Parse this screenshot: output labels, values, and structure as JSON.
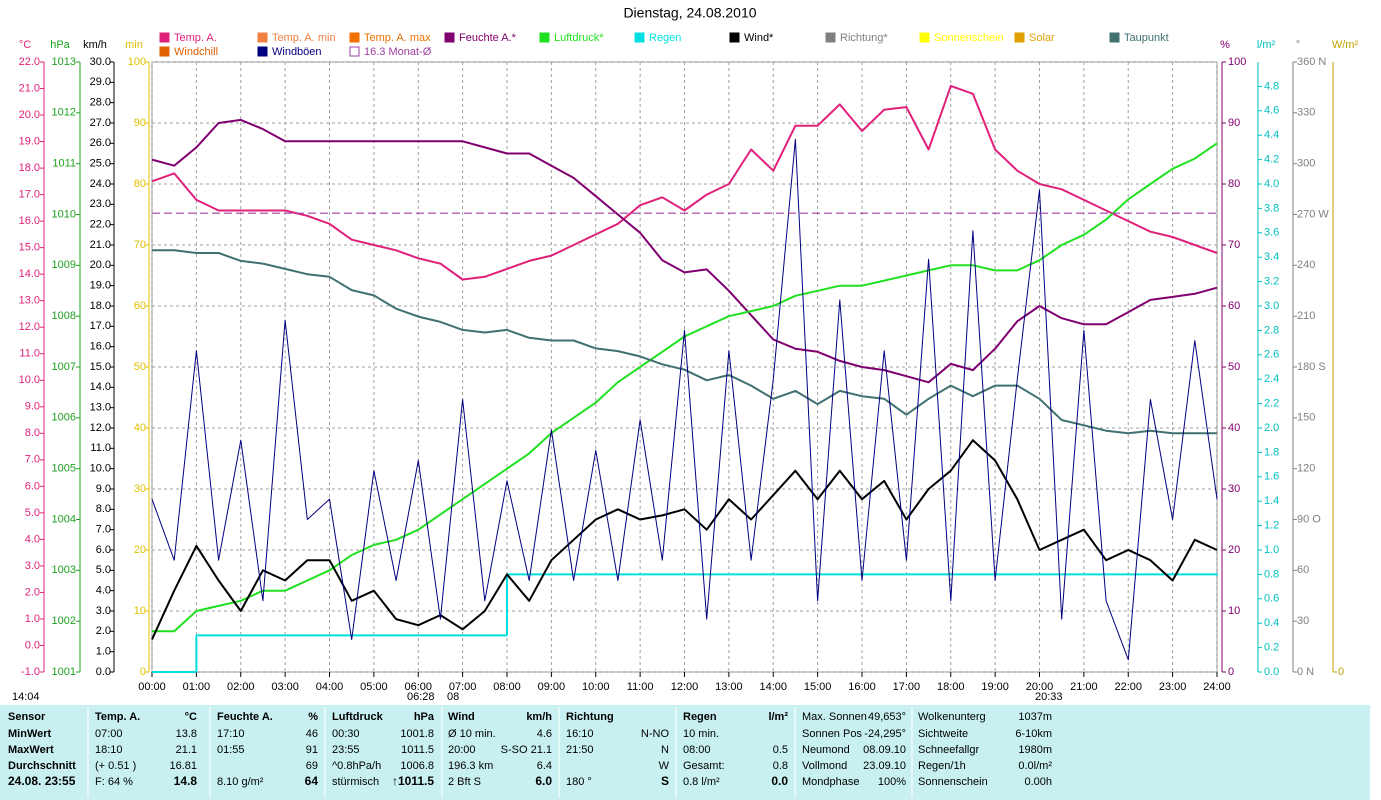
{
  "chart_data": {
    "type": "line",
    "title": "Dienstag, 24.08.2010",
    "x": [
      0,
      0.5,
      1,
      1.5,
      2,
      2.5,
      3,
      3.5,
      4,
      4.5,
      5,
      5.5,
      6,
      6.5,
      7,
      7.5,
      8,
      8.5,
      9,
      9.5,
      10,
      10.5,
      11,
      11.5,
      12,
      12.5,
      13,
      13.5,
      14,
      14.5,
      15,
      15.5,
      16,
      16.5,
      17,
      17.5,
      18,
      18.5,
      19,
      19.5,
      20,
      20.5,
      21,
      21.5,
      22,
      22.5,
      23,
      23.5,
      24
    ],
    "xlim": [
      0,
      24
    ],
    "xticks": [
      {
        "value": 0,
        "label": "00:00"
      },
      {
        "value": 1,
        "label": "01:00"
      },
      {
        "value": 2,
        "label": "02:00"
      },
      {
        "value": 3,
        "label": "03:00"
      },
      {
        "value": 4,
        "label": "04:00"
      },
      {
        "value": 5,
        "label": "05:00"
      },
      {
        "value": 6,
        "label": "06:00"
      },
      {
        "value": 7,
        "label": "07:00"
      },
      {
        "value": 8,
        "label": "08:00"
      },
      {
        "value": 9,
        "label": "09:00"
      },
      {
        "value": 10,
        "label": "10:00"
      },
      {
        "value": 11,
        "label": "11:00"
      },
      {
        "value": 12,
        "label": "12:00"
      },
      {
        "value": 13,
        "label": "13:00"
      },
      {
        "value": 14,
        "label": "14:00"
      },
      {
        "value": 15,
        "label": "15:00"
      },
      {
        "value": 16,
        "label": "16:00"
      },
      {
        "value": 17,
        "label": "17:00"
      },
      {
        "value": 18,
        "label": "18:00"
      },
      {
        "value": 19,
        "label": "19:00"
      },
      {
        "value": 20,
        "label": "20:00"
      },
      {
        "value": 21,
        "label": "21:00"
      },
      {
        "value": 22,
        "label": "22:00"
      },
      {
        "value": 23,
        "label": "23:00"
      },
      {
        "value": 24,
        "label": "24:00"
      }
    ],
    "xgrid": true,
    "axes": [
      {
        "label": "°C",
        "color": "#e0207a",
        "lim": [
          -1,
          22
        ],
        "ticks": [
          {
            "value": -1,
            "label": "-1.0"
          },
          {
            "value": 0,
            "label": "0.0"
          },
          {
            "value": 1,
            "label": "1.0"
          },
          {
            "value": 2,
            "label": "2.0"
          },
          {
            "value": 3,
            "label": "3.0"
          },
          {
            "value": 4,
            "label": "4.0"
          },
          {
            "value": 5,
            "label": "5.0"
          },
          {
            "value": 6,
            "label": "6.0"
          },
          {
            "value": 7,
            "label": "7.0"
          },
          {
            "value": 8,
            "label": "8.0"
          },
          {
            "value": 9,
            "label": "9.0"
          },
          {
            "value": 10,
            "label": "10.0"
          },
          {
            "value": 11,
            "label": "11.0"
          },
          {
            "value": 12,
            "label": "12.0"
          },
          {
            "value": 13,
            "label": "13.0"
          },
          {
            "value": 14,
            "label": "14.0"
          },
          {
            "value": 15,
            "label": "15.0"
          },
          {
            "value": 16,
            "label": "16.0"
          },
          {
            "value": 17,
            "label": "17.0"
          },
          {
            "value": 18,
            "label": "18.0"
          },
          {
            "value": 19,
            "label": "19.0"
          },
          {
            "value": 20,
            "label": "20.0"
          },
          {
            "value": 21,
            "label": "21.0"
          },
          {
            "value": 22,
            "label": "22.0"
          }
        ]
      },
      {
        "label": "hPa",
        "color": "#20a020",
        "lim": [
          1001,
          1013
        ],
        "ticks": [
          1001,
          1002,
          1003,
          1004,
          1005,
          1006,
          1007,
          1008,
          1009,
          1010,
          1011,
          1012,
          1013
        ]
      },
      {
        "label": "km/h",
        "color": "#000000",
        "lim": [
          0,
          30
        ],
        "ticks": [
          {
            "value": 0,
            "label": "0.0"
          },
          {
            "value": 1,
            "label": "1.0"
          },
          {
            "value": 2,
            "label": "2.0"
          },
          {
            "value": 3,
            "label": "3.0"
          },
          {
            "value": 4,
            "label": "4.0"
          },
          {
            "value": 5,
            "label": "5.0"
          },
          {
            "value": 6,
            "label": "6.0"
          },
          {
            "value": 7,
            "label": "7.0"
          },
          {
            "value": 8,
            "label": "8.0"
          },
          {
            "value": 9,
            "label": "9.0"
          },
          {
            "value": 10,
            "label": "10.0"
          },
          {
            "value": 11,
            "label": "11.0"
          },
          {
            "value": 12,
            "label": "12.0"
          },
          {
            "value": 13,
            "label": "13.0"
          },
          {
            "value": 14,
            "label": "14.0"
          },
          {
            "value": 15,
            "label": "15.0"
          },
          {
            "value": 16,
            "label": "16.0"
          },
          {
            "value": 17,
            "label": "17.0"
          },
          {
            "value": 18,
            "label": "18.0"
          },
          {
            "value": 19,
            "label": "19.0"
          },
          {
            "value": 20,
            "label": "20.0"
          },
          {
            "value": 21,
            "label": "21.0"
          },
          {
            "value": 22,
            "label": "22.0"
          },
          {
            "value": 23,
            "label": "23.0"
          },
          {
            "value": 24,
            "label": "24.0"
          },
          {
            "value": 25,
            "label": "25.0"
          },
          {
            "value": 26,
            "label": "26.0"
          },
          {
            "value": 27,
            "label": "27.0"
          },
          {
            "value": 28,
            "label": "28.0"
          },
          {
            "value": 29,
            "label": "29.0"
          },
          {
            "value": 30,
            "label": "30.0"
          }
        ]
      },
      {
        "label": "min",
        "color": "#e0c000",
        "lim": [
          0,
          100
        ],
        "ticks": [
          0,
          10,
          20,
          30,
          40,
          50,
          60,
          70,
          80,
          90,
          100
        ]
      },
      {
        "label": "%",
        "color": "#800070",
        "lim": [
          0,
          100
        ],
        "ticks": [
          0,
          10,
          20,
          30,
          40,
          50,
          60,
          70,
          80,
          90,
          100
        ],
        "grid": true
      },
      {
        "label": "l/m²",
        "color": "#00c0c0",
        "lim": [
          0,
          5
        ],
        "ticks": [
          {
            "value": 0,
            "label": "0.0"
          },
          0.2,
          0.4,
          0.6,
          0.8,
          {
            "value": 1,
            "label": "1.0"
          },
          1.2,
          1.4,
          1.6,
          1.8,
          {
            "value": 2,
            "label": "2.0"
          },
          2.2,
          2.4,
          2.6,
          2.8,
          {
            "value": 3,
            "label": "3.0"
          },
          3.2,
          3.4,
          3.6,
          3.8,
          {
            "value": 4,
            "label": "4.0"
          },
          4.2,
          4.4,
          4.6,
          4.8
        ]
      },
      {
        "label": "°",
        "color": "#808080",
        "lim": [
          0,
          360
        ],
        "ticks": [
          {
            "value": 0,
            "label": "0 N"
          },
          30,
          60,
          {
            "value": 90,
            "label": "90 O"
          },
          120,
          150,
          {
            "value": 180,
            "label": "180 S"
          },
          210,
          240,
          {
            "value": 270,
            "label": "270 W"
          },
          300,
          330,
          {
            "value": 360,
            "label": "360 N"
          }
        ]
      },
      {
        "label": "W/m²",
        "color": "#c0a000",
        "lim": [
          0,
          1000
        ],
        "ticks": [
          0
        ]
      }
    ],
    "series": [
      {
        "name": "Temp. A.",
        "color": "#e0207a",
        "axis": 0,
        "values": [
          17.5,
          17.8,
          16.8,
          16.4,
          16.4,
          16.4,
          16.4,
          16.2,
          15.9,
          15.3,
          15.1,
          14.9,
          14.6,
          14.4,
          13.8,
          13.9,
          14.2,
          14.5,
          14.7,
          15.1,
          15.5,
          15.9,
          16.6,
          16.9,
          16.4,
          17.0,
          17.4,
          18.7,
          17.9,
          19.6,
          19.6,
          20.4,
          19.4,
          20.2,
          20.3,
          18.7,
          21.1,
          20.8,
          18.7,
          17.9,
          17.4,
          17.2,
          16.8,
          16.4,
          16.0,
          15.6,
          15.4,
          15.1,
          14.8
        ]
      },
      {
        "name": "Temp. A. min",
        "color": "#f08040"
      },
      {
        "name": "Temp. A. max",
        "color": "#f07000"
      },
      {
        "name": "Feuchte A.*",
        "color": "#800070",
        "axis": 4,
        "values": [
          84,
          83,
          86,
          90,
          90.5,
          89,
          87,
          87,
          87,
          87,
          87,
          87,
          87,
          87,
          87,
          86,
          85,
          85,
          83,
          81,
          78,
          75,
          72,
          67.5,
          65.5,
          66,
          62.5,
          58.5,
          54.5,
          53,
          52.5,
          51,
          50,
          49.5,
          48.5,
          47.5,
          50.5,
          49.5,
          53,
          57.5,
          60,
          58,
          57,
          57,
          59,
          61,
          61.5,
          62,
          63
        ]
      },
      {
        "name": "Luftdruck*",
        "color": "#20e020",
        "axis": 1,
        "values": [
          1001.8,
          1001.8,
          1002.2,
          1002.3,
          1002.4,
          1002.6,
          1002.6,
          1002.8,
          1003.0,
          1003.3,
          1003.5,
          1003.6,
          1003.8,
          1004.1,
          1004.4,
          1004.7,
          1005.0,
          1005.3,
          1005.7,
          1006.0,
          1006.3,
          1006.7,
          1007.0,
          1007.3,
          1007.6,
          1007.8,
          1008.0,
          1008.1,
          1008.2,
          1008.4,
          1008.5,
          1008.6,
          1008.6,
          1008.7,
          1008.8,
          1008.9,
          1009.0,
          1009.0,
          1008.9,
          1008.9,
          1009.1,
          1009.4,
          1009.6,
          1009.9,
          1010.3,
          1010.6,
          1010.9,
          1011.1,
          1011.4
        ]
      },
      {
        "name": "Regen",
        "color": "#00e0e0",
        "axis": 5,
        "step": true,
        "values": [
          0,
          0,
          0.3,
          0.3,
          0.3,
          0.3,
          0.3,
          0.3,
          0.3,
          0.3,
          0.3,
          0.3,
          0.3,
          0.3,
          0.3,
          0.3,
          0.8,
          0.8,
          0.8,
          0.8,
          0.8,
          0.8,
          0.8,
          0.8,
          0.8,
          0.8,
          0.8,
          0.8,
          0.8,
          0.8,
          0.8,
          0.8,
          0.8,
          0.8,
          0.8,
          0.8,
          0.8,
          0.8,
          0.8,
          0.8,
          0.8,
          0.8,
          0.8,
          0.8,
          0.8,
          0.8,
          0.8,
          0.8,
          0.8
        ]
      },
      {
        "name": "Wind*",
        "color": "#000000",
        "axis": 2,
        "values": [
          1.6,
          4.0,
          6.2,
          4.5,
          3.0,
          5.0,
          4.5,
          5.5,
          5.5,
          3.5,
          4.0,
          2.6,
          2.3,
          2.8,
          2.1,
          3.0,
          4.8,
          3.5,
          5.5,
          6.5,
          7.5,
          8.0,
          7.5,
          7.7,
          8.0,
          7.0,
          8.5,
          7.5,
          8.7,
          9.9,
          8.5,
          9.9,
          8.5,
          9.4,
          7.5,
          9.0,
          9.9,
          11.4,
          10.4,
          8.5,
          6.0,
          6.5,
          7.0,
          5.5,
          6.0,
          5.5,
          4.5,
          6.5,
          6.0
        ]
      },
      {
        "name": "Richtung*",
        "color": "#808080"
      },
      {
        "name": "Sonnenschein",
        "color": "#ffff00"
      },
      {
        "name": "Solar",
        "color": "#e0a000"
      },
      {
        "name": "Taupunkt",
        "color": "#407070",
        "axis": 0,
        "values": [
          14.9,
          14.9,
          14.8,
          14.8,
          14.5,
          14.4,
          14.2,
          14.0,
          13.9,
          13.4,
          13.2,
          12.7,
          12.4,
          12.2,
          11.9,
          11.8,
          11.9,
          11.6,
          11.5,
          11.5,
          11.2,
          11.1,
          10.9,
          10.6,
          10.4,
          10.0,
          10.2,
          9.8,
          9.3,
          9.6,
          9.1,
          9.6,
          9.4,
          9.3,
          8.7,
          9.3,
          9.8,
          9.4,
          9.8,
          9.8,
          9.3,
          8.5,
          8.3,
          8.1,
          8.0,
          8.1,
          8.0,
          8.0,
          8.0
        ]
      },
      {
        "name": "Windchill",
        "color": "#e06000"
      },
      {
        "name": "Windböen",
        "color": "#000080",
        "axis": 2,
        "thin": true,
        "values": [
          8.5,
          5.5,
          15.8,
          5.5,
          11.4,
          3.5,
          17.3,
          7.5,
          8.5,
          1.6,
          9.9,
          4.5,
          10.4,
          2.6,
          13.4,
          3.5,
          9.4,
          4.5,
          11.9,
          4.5,
          10.9,
          4.5,
          12.4,
          5.5,
          16.8,
          2.6,
          15.8,
          5.5,
          14.4,
          26.2,
          3.5,
          18.3,
          4.5,
          15.8,
          5.5,
          20.3,
          3.5,
          21.7,
          4.5,
          14.4,
          23.7,
          2.6,
          16.8,
          3.5,
          0.6,
          13.4,
          7.5,
          16.3,
          8.5
        ]
      },
      {
        "name": "16.3 Monat-Ø",
        "color": "#a040a0",
        "axis": 0,
        "level": 16.3,
        "hollow": true,
        "dashed": true
      }
    ],
    "annotations": [
      "14:04",
      "06:28",
      "08",
      "20:33"
    ]
  },
  "table": {
    "rows": [
      [
        "Sensor",
        "Temp. A.",
        "°C",
        "Feuchte A.",
        "%",
        "Luftdruck",
        "hPa",
        "Wind",
        "km/h",
        "Richtung",
        null,
        "Regen",
        "l/m²",
        "Max. Sonnen",
        "49,653°",
        "Wolkenunterg",
        "1037m"
      ],
      [
        "MinWert",
        "07:00",
        "13.8",
        "17:10",
        "46",
        "00:30",
        "1001.8",
        "Ø 10 min.",
        "4.6",
        "16:10",
        "N-NO",
        "10 min.",
        null,
        "Sonnen Pos",
        "-24,295°",
        "Sichtweite",
        "6-10km"
      ],
      [
        "MaxWert",
        "18:10",
        "21.1",
        "01:55",
        "91",
        "23:55",
        "1011.5",
        "20:00",
        "S-SO 21.1",
        "21:50",
        "N",
        "08:00",
        "0.5",
        "Neumond",
        "08.09.10",
        "Schneefallgr",
        "1980m"
      ],
      [
        "Durchschnitt",
        "(+ 0.51 )",
        "16.81",
        null,
        "69",
        "^0.8hPa/h",
        "1006.8",
        "196.3 km",
        "6.4",
        null,
        "W",
        "Gesamt:",
        "0.8",
        "Vollmond",
        "23.09.10",
        "Regen/1h",
        "0.0l/m²"
      ],
      [
        "24.08. 23:55",
        "F: 64 %",
        "14.8",
        "8.10 g/m²",
        "64",
        "stürmisch",
        "↑1011.5",
        "2 Bft S",
        "6.0",
        "180 °",
        "S",
        "0.8 l/m²",
        "0.0",
        "Mondphase",
        "100%",
        "Sonnenschein",
        "0.00h"
      ]
    ]
  }
}
